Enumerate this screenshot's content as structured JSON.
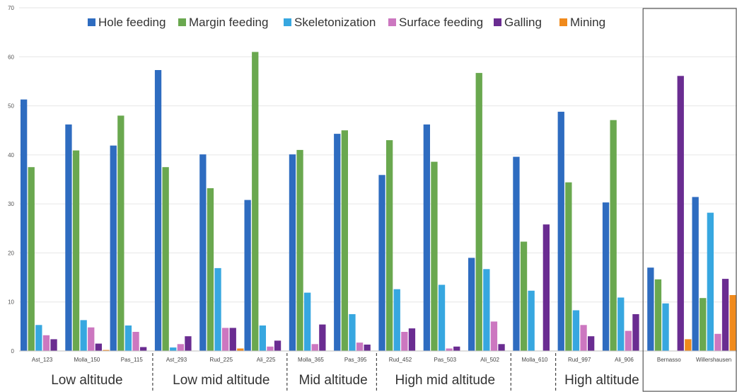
{
  "chart_data": {
    "type": "bar",
    "title": "",
    "xlabel": "",
    "ylabel": "",
    "ylim": [
      0,
      70
    ],
    "yticks": [
      0,
      10,
      20,
      30,
      40,
      50,
      60,
      70
    ],
    "grid": true,
    "legend_position": "top",
    "categories": [
      "Ast_123",
      "Molla_150",
      "Pas_115",
      "Ast_293",
      "Rud_225",
      "Ali_225",
      "Molla_365",
      "Pas_395",
      "Rud_452",
      "Pas_503",
      "Ali_502",
      "Molla_610",
      "Rud_997",
      "Ali_906",
      "Bernasso",
      "Willershausen"
    ],
    "series": [
      {
        "name": "Hole feeding",
        "color": "#2e6cc0",
        "values": [
          51.3,
          46.2,
          41.9,
          57.3,
          40.1,
          30.8,
          40.1,
          44.3,
          35.9,
          46.2,
          19.0,
          39.6,
          48.8,
          30.3,
          17.0,
          31.4
        ]
      },
      {
        "name": "Margin feeding",
        "color": "#6aa84f",
        "values": [
          37.5,
          40.9,
          48.0,
          37.5,
          33.2,
          61.0,
          41.0,
          45.0,
          43.0,
          38.6,
          56.7,
          22.3,
          34.4,
          47.1,
          14.6,
          10.8
        ]
      },
      {
        "name": "Skeletonization",
        "color": "#37a7e0",
        "values": [
          5.3,
          6.3,
          5.2,
          0.7,
          16.9,
          5.2,
          11.9,
          7.5,
          12.6,
          13.5,
          16.7,
          12.3,
          8.3,
          10.9,
          9.7,
          28.2
        ]
      },
      {
        "name": "Surface feeding",
        "color": "#cc77c0",
        "values": [
          3.2,
          4.8,
          3.9,
          1.4,
          4.7,
          0.9,
          1.4,
          1.7,
          3.9,
          0.5,
          6.0,
          0.0,
          5.3,
          4.1,
          0.0,
          3.5
        ]
      },
      {
        "name": "Galling",
        "color": "#6a2c91",
        "values": [
          2.4,
          1.5,
          0.8,
          3.0,
          4.7,
          2.1,
          5.4,
          1.3,
          4.6,
          0.9,
          1.4,
          25.8,
          3.0,
          7.5,
          56.1,
          14.7
        ]
      },
      {
        "name": "Mining",
        "color": "#f08a1c",
        "values": [
          0.0,
          0.2,
          0.0,
          0.0,
          0.5,
          0.0,
          0.0,
          0.0,
          0.0,
          0.0,
          0.0,
          0.0,
          0.0,
          0.0,
          2.4,
          11.4
        ]
      }
    ],
    "groups": [
      {
        "label": "Low altitude",
        "from": 0,
        "to": 2
      },
      {
        "label": "Low mid altitude",
        "from": 3,
        "to": 5
      },
      {
        "label": "Mid altitude",
        "from": 6,
        "to": 7
      },
      {
        "label": "High mid altitude",
        "from": 8,
        "to": 10
      },
      {
        "label": "",
        "from": 11,
        "to": 11
      },
      {
        "label": "High altitude",
        "from": 12,
        "to": 13
      }
    ],
    "boxed_categories": {
      "from": 14,
      "to": 15
    }
  }
}
